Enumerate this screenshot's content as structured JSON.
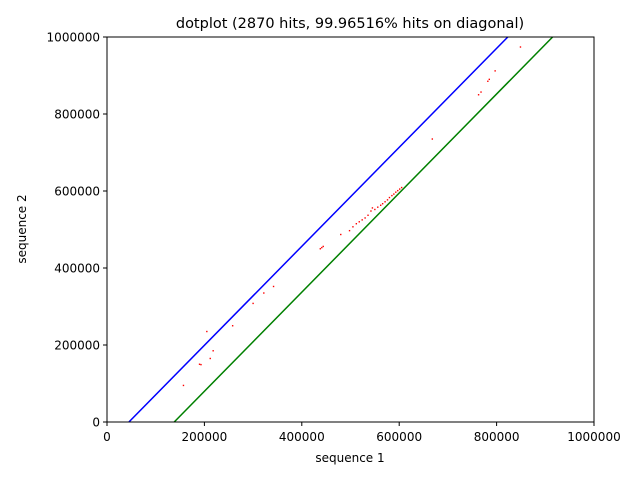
{
  "chart_data": {
    "type": "scatter",
    "title": "dotplot (2870 hits, 99.96516% hits on diagonal)",
    "xlabel": "sequence 1",
    "ylabel": "sequence 2",
    "xlim": [
      0,
      1000000
    ],
    "ylim": [
      0,
      1000000
    ],
    "xticks": [
      0,
      200000,
      400000,
      600000,
      800000,
      1000000
    ],
    "yticks": [
      0,
      200000,
      400000,
      600000,
      800000,
      1000000
    ],
    "xtick_labels": [
      "0",
      "200000",
      "400000",
      "600000",
      "800000",
      "1000000"
    ],
    "ytick_labels": [
      "0",
      "200000",
      "400000",
      "600000",
      "800000",
      "1000000"
    ],
    "grid": false,
    "lines": [
      {
        "color": "#0000ff",
        "x": [
          45000,
          823000
        ],
        "y": [
          0,
          1000000
        ]
      },
      {
        "color": "#008000",
        "x": [
          138000,
          915000
        ],
        "y": [
          0,
          1000000
        ]
      }
    ],
    "points_color": "#ff0000",
    "points": [
      [
        157000,
        95000
      ],
      [
        190000,
        150000
      ],
      [
        193000,
        149000
      ],
      [
        205000,
        235000
      ],
      [
        212000,
        165000
      ],
      [
        218000,
        185000
      ],
      [
        258000,
        250000
      ],
      [
        300000,
        308000
      ],
      [
        322000,
        335000
      ],
      [
        342000,
        352000
      ],
      [
        438000,
        450000
      ],
      [
        441000,
        453000
      ],
      [
        444000,
        456000
      ],
      [
        480000,
        487000
      ],
      [
        498000,
        497000
      ],
      [
        505000,
        507000
      ],
      [
        512000,
        515000
      ],
      [
        518000,
        520000
      ],
      [
        524000,
        525000
      ],
      [
        530000,
        530000
      ],
      [
        536000,
        537000
      ],
      [
        542000,
        548000
      ],
      [
        545000,
        556000
      ],
      [
        550000,
        552000
      ],
      [
        556000,
        558000
      ],
      [
        562000,
        563000
      ],
      [
        566000,
        567000
      ],
      [
        571000,
        572000
      ],
      [
        576000,
        577000
      ],
      [
        580000,
        583000
      ],
      [
        585000,
        588000
      ],
      [
        589000,
        592000
      ],
      [
        593000,
        597000
      ],
      [
        597000,
        601000
      ],
      [
        601000,
        605000
      ],
      [
        605000,
        609000
      ],
      [
        668000,
        735000
      ],
      [
        763000,
        850000
      ],
      [
        768000,
        857000
      ],
      [
        782000,
        885000
      ],
      [
        785000,
        890000
      ],
      [
        797000,
        912000
      ],
      [
        849000,
        974000
      ]
    ]
  }
}
